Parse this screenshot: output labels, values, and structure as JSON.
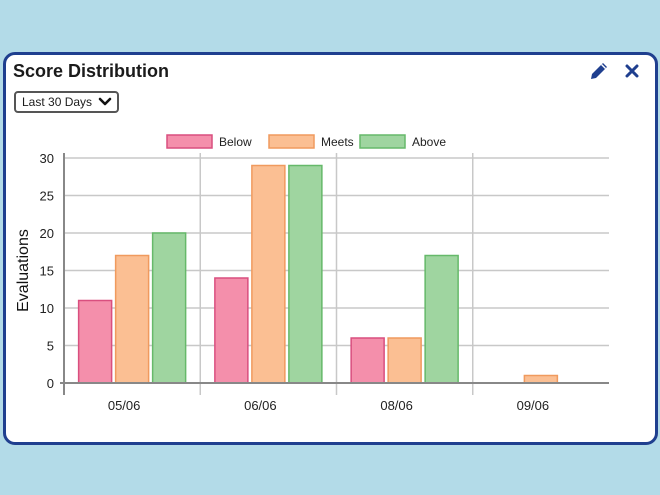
{
  "widget": {
    "title": "Score Distribution",
    "dropdown": {
      "selected": "Last 30 Days"
    },
    "icons": {
      "edit": "pencil-icon",
      "close": "close-icon",
      "dropdown": "chevron-down-icon"
    }
  },
  "chart_data": {
    "type": "bar",
    "categories": [
      "05/06",
      "06/06",
      "08/06",
      "09/06"
    ],
    "series": [
      {
        "name": "Below",
        "values": [
          11,
          14,
          6,
          0
        ],
        "fill": "#f48fab",
        "stroke": "#d94f7f"
      },
      {
        "name": "Meets",
        "values": [
          17,
          29,
          6,
          1
        ],
        "fill": "#fbbf93",
        "stroke": "#f09a5e"
      },
      {
        "name": "Above",
        "values": [
          20,
          29,
          17,
          0
        ],
        "fill": "#9fd5a0",
        "stroke": "#66b96a"
      }
    ],
    "xlabel": "",
    "ylabel": "Evaluations",
    "ylim": [
      0,
      30
    ],
    "yticks": [
      "0",
      "5",
      "10",
      "15",
      "20",
      "25",
      "30"
    ],
    "grid": true,
    "legend": "top-center"
  }
}
